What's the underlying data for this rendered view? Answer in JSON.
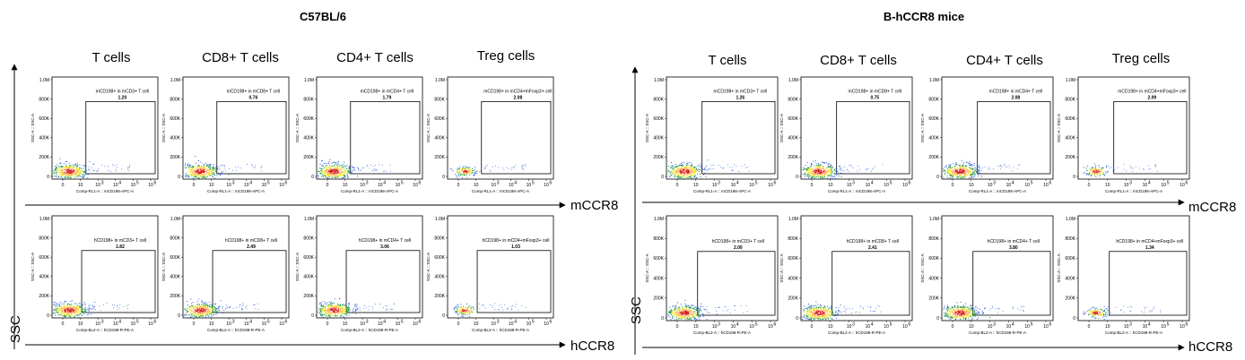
{
  "figure": {
    "arrow_labels": {
      "x_top": "mCCR8",
      "x_bottom": "hCCR8",
      "y": "SSC"
    }
  },
  "chart_data": [
    {
      "type": "scatter",
      "title": "C57BL/6",
      "columns": [
        "T cells",
        "CD8+ T cells",
        "CD4+ T cells",
        "Treg cells"
      ],
      "y_tick_labels": [
        "1.0M",
        "800K",
        "600K",
        "400K",
        "200K",
        "0"
      ],
      "x_tick_labels": [
        "0",
        "10",
        "10",
        "10",
        "10",
        "10"
      ],
      "x_tick_exponents": [
        "",
        "",
        "3",
        "4",
        "5",
        "6"
      ],
      "y_axis_label": "SSC-A :: SSC-A",
      "rows": [
        {
          "marker": "mCCR8",
          "x_axis_label": "Comp-RL1-A :: mCD198-APC-A",
          "panels": [
            {
              "gate": "mCD198+ in mCD3+ T cell",
              "value": "1.20"
            },
            {
              "gate": "mCD198+ in mCD8+ T cell",
              "value": "0.76"
            },
            {
              "gate": "mCD198+ in mCD4+ T cell",
              "value": "1.79"
            },
            {
              "gate": "mCD198+ in mCD4+mFoxp3+ cell",
              "value": "2.08"
            }
          ]
        },
        {
          "marker": "hCCR8",
          "x_axis_label": "Comp-BL2-A :: hCD198-R-PE-A",
          "panels": [
            {
              "gate": "hCD198+ in mCD3+ T cell",
              "value": "1.82"
            },
            {
              "gate": "hCD198+ in mCD8+ T cell",
              "value": "2.49"
            },
            {
              "gate": "hCD198+ in mCD4+ T cell",
              "value": "3.06"
            },
            {
              "gate": "hCD198+ in mCD4+mFoxp3+ cell",
              "value": "1.03"
            }
          ]
        }
      ]
    },
    {
      "type": "scatter",
      "title": "B-hCCR8 mice",
      "columns": [
        "T cells",
        "CD8+ T cells",
        "CD4+ T cells",
        "Treg cells"
      ],
      "y_tick_labels": [
        "1.0M",
        "800K",
        "600K",
        "400K",
        "200K",
        "0"
      ],
      "x_tick_labels": [
        "0",
        "10",
        "10",
        "10",
        "10",
        "10"
      ],
      "x_tick_exponents": [
        "",
        "",
        "3",
        "4",
        "5",
        "6"
      ],
      "y_axis_label": "SSC-A :: SSC-A",
      "rows": [
        {
          "marker": "mCCR8",
          "x_axis_label": "Comp-RL1-A :: mCD198-APC-A",
          "panels": [
            {
              "gate": "mCD198+ in mCD3+ T cell",
              "value": "1.26"
            },
            {
              "gate": "mCD198+ in mCD8+ T cell",
              "value": "0.75"
            },
            {
              "gate": "mCD198+ in mCD4+ T cell",
              "value": "2.08"
            },
            {
              "gate": "mCD198+ in mCD4+mFoxp3+ cell",
              "value": "2.09"
            }
          ]
        },
        {
          "marker": "hCCR8",
          "x_axis_label": "Comp-BL2-A :: hCD198-R-PE-A",
          "panels": [
            {
              "gate": "hCD198+ in mCD3+ T cell",
              "value": "2.00"
            },
            {
              "gate": "hCD198+ in mCD8+ T cell",
              "value": "2.41"
            },
            {
              "gate": "hCD198+ in mCD4+ T cell",
              "value": "3.80"
            },
            {
              "gate": "hCD198+ in mCD4+mFoxp3+ cell",
              "value": "1.34"
            }
          ]
        }
      ]
    }
  ]
}
